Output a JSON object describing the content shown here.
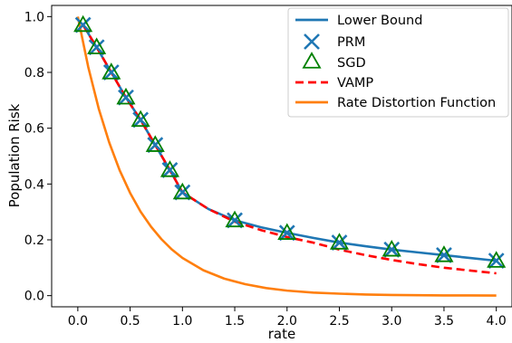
{
  "chart_data": {
    "type": "line",
    "title": "",
    "xlabel": "rate",
    "ylabel": "Population Risk",
    "xlim": [
      -0.25,
      4.15
    ],
    "ylim": [
      -0.04,
      1.04
    ],
    "xticks": [
      0.0,
      0.5,
      1.0,
      1.5,
      2.0,
      2.5,
      3.0,
      3.5,
      4.0
    ],
    "xtick_labels": [
      "0.0",
      "0.5",
      "1.0",
      "1.5",
      "2.0",
      "2.5",
      "3.0",
      "3.5",
      "4.0"
    ],
    "yticks": [
      0.0,
      0.2,
      0.4,
      0.6,
      0.8,
      1.0
    ],
    "ytick_labels": [
      "0.0",
      "0.2",
      "0.4",
      "0.6",
      "0.8",
      "1.0"
    ],
    "grid": false,
    "legend_position": "top-right",
    "series": [
      {
        "name": "Lower Bound",
        "style": "line",
        "color": "#1f77b4",
        "x": [
          0.05,
          0.18,
          0.32,
          0.46,
          0.6,
          0.74,
          0.88,
          1.0,
          1.25,
          1.5,
          1.75,
          2.0,
          2.25,
          2.5,
          2.75,
          3.0,
          3.25,
          3.5,
          3.75,
          4.0
        ],
        "y": [
          0.97,
          0.89,
          0.8,
          0.71,
          0.63,
          0.54,
          0.45,
          0.37,
          0.31,
          0.27,
          0.245,
          0.225,
          0.207,
          0.19,
          0.177,
          0.165,
          0.155,
          0.145,
          0.135,
          0.125
        ]
      },
      {
        "name": "PRM",
        "style": "x-marker",
        "color": "#1f77b4",
        "x": [
          0.05,
          0.18,
          0.32,
          0.46,
          0.6,
          0.74,
          0.88,
          1.0,
          1.5,
          2.0,
          2.5,
          3.0,
          3.5,
          4.0
        ],
        "y": [
          0.97,
          0.89,
          0.8,
          0.71,
          0.63,
          0.54,
          0.45,
          0.37,
          0.27,
          0.225,
          0.19,
          0.165,
          0.145,
          0.125
        ]
      },
      {
        "name": "SGD",
        "style": "triangle-marker",
        "color": "#008000",
        "x": [
          0.05,
          0.18,
          0.32,
          0.46,
          0.6,
          0.74,
          0.88,
          1.0,
          1.5,
          2.0,
          2.5,
          3.0,
          3.5,
          4.0
        ],
        "y": [
          0.97,
          0.89,
          0.8,
          0.71,
          0.63,
          0.54,
          0.45,
          0.37,
          0.27,
          0.225,
          0.19,
          0.165,
          0.145,
          0.125
        ]
      },
      {
        "name": "VAMP",
        "style": "dashed-line",
        "color": "#ff0000",
        "x": [
          0.05,
          0.18,
          0.32,
          0.46,
          0.6,
          0.74,
          0.88,
          1.0,
          1.25,
          1.5,
          1.75,
          2.0,
          2.25,
          2.5,
          2.75,
          3.0,
          3.25,
          3.5,
          3.75,
          4.0
        ],
        "y": [
          0.97,
          0.89,
          0.8,
          0.71,
          0.63,
          0.54,
          0.45,
          0.37,
          0.31,
          0.265,
          0.235,
          0.21,
          0.19,
          0.165,
          0.145,
          0.128,
          0.113,
          0.1,
          0.09,
          0.08
        ]
      },
      {
        "name": "Rate Distortion Function",
        "style": "line",
        "color": "#ff7f0e",
        "x": [
          0.0,
          0.1,
          0.2,
          0.3,
          0.4,
          0.5,
          0.6,
          0.7,
          0.8,
          0.9,
          1.0,
          1.2,
          1.4,
          1.6,
          1.8,
          2.0,
          2.25,
          2.5,
          2.75,
          3.0,
          3.25,
          3.5,
          3.75,
          4.0
        ],
        "y": [
          1.0,
          0.819,
          0.67,
          0.549,
          0.449,
          0.368,
          0.301,
          0.247,
          0.202,
          0.165,
          0.135,
          0.091,
          0.061,
          0.041,
          0.027,
          0.018,
          0.011,
          0.007,
          0.004,
          0.0025,
          0.0015,
          0.0009,
          0.0006,
          0.0003
        ]
      }
    ]
  }
}
